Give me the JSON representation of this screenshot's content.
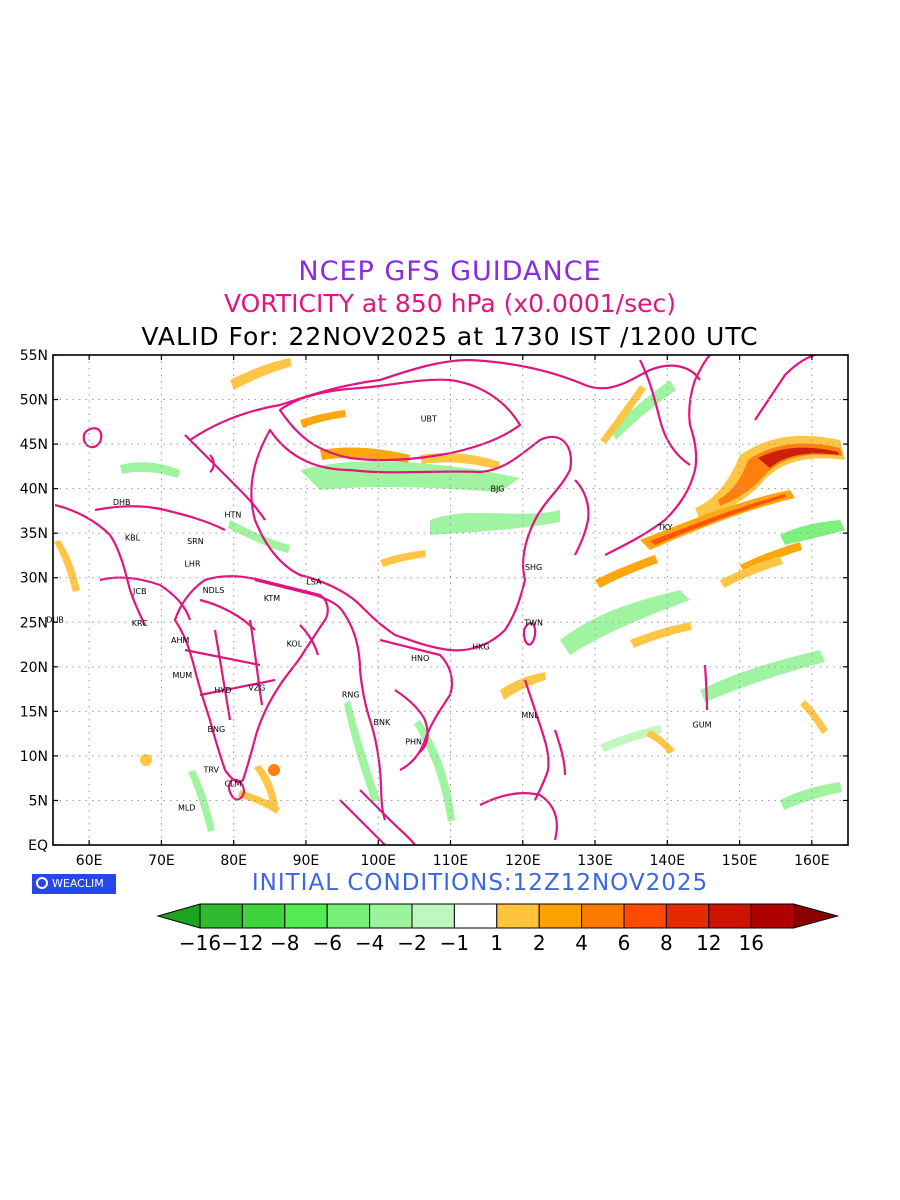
{
  "title": {
    "line1": "NCEP GFS GUIDANCE",
    "line2": "VORTICITY at 850 hPa (x0.0001/sec)",
    "line3": "VALID For: 22NOV2025 at 1730 IST /1200 UTC"
  },
  "initial_conditions": "INITIAL CONDITIONS:12Z12NOV2025",
  "logo_text": "WEACLIM",
  "logo_icon": "copyright-circle-icon",
  "map": {
    "lon_range": [
      55,
      165
    ],
    "lat_range": [
      0,
      55
    ],
    "grid": "dotted",
    "lat_labels": [
      "55N",
      "50N",
      "45N",
      "40N",
      "35N",
      "30N",
      "25N",
      "20N",
      "15N",
      "10N",
      "5N",
      "EQ"
    ],
    "lon_labels": [
      "60E",
      "70E",
      "80E",
      "90E",
      "100E",
      "110E",
      "120E",
      "130E",
      "140E",
      "150E",
      "160E"
    ],
    "boundary_color": "#e0157f",
    "stations": [
      {
        "code": "UBT",
        "lon": 107,
        "lat": 47.9
      },
      {
        "code": "BJG",
        "lon": 116.5,
        "lat": 40
      },
      {
        "code": "DHB",
        "lon": 64.5,
        "lat": 38.5
      },
      {
        "code": "HTN",
        "lon": 79.9,
        "lat": 37.1
      },
      {
        "code": "KBL",
        "lon": 66,
        "lat": 34.5
      },
      {
        "code": "SRN",
        "lon": 74.7,
        "lat": 34.1
      },
      {
        "code": "TKY",
        "lon": 139.7,
        "lat": 35.7
      },
      {
        "code": "LHR",
        "lon": 74.3,
        "lat": 31.6
      },
      {
        "code": "SHG",
        "lon": 121.5,
        "lat": 31.2
      },
      {
        "code": "LSA",
        "lon": 91.1,
        "lat": 29.6
      },
      {
        "code": "JCB",
        "lon": 67,
        "lat": 28.5
      },
      {
        "code": "NDLS",
        "lon": 77.2,
        "lat": 28.6
      },
      {
        "code": "KTM",
        "lon": 85.3,
        "lat": 27.7
      },
      {
        "code": "DUB",
        "lon": 55.3,
        "lat": 25.3
      },
      {
        "code": "KRC",
        "lon": 67,
        "lat": 24.9
      },
      {
        "code": "TWN",
        "lon": 121.5,
        "lat": 25
      },
      {
        "code": "AHM",
        "lon": 72.6,
        "lat": 23
      },
      {
        "code": "KOL",
        "lon": 88.4,
        "lat": 22.6
      },
      {
        "code": "HKG",
        "lon": 114.2,
        "lat": 22.3
      },
      {
        "code": "HNO",
        "lon": 105.8,
        "lat": 21
      },
      {
        "code": "MUM",
        "lon": 72.9,
        "lat": 19.1
      },
      {
        "code": "HYD",
        "lon": 78.5,
        "lat": 17.4
      },
      {
        "code": "VZG",
        "lon": 83.2,
        "lat": 17.7
      },
      {
        "code": "RNG",
        "lon": 96.2,
        "lat": 16.9
      },
      {
        "code": "BNK",
        "lon": 100.5,
        "lat": 13.8
      },
      {
        "code": "MNL",
        "lon": 121,
        "lat": 14.6
      },
      {
        "code": "GUM",
        "lon": 144.8,
        "lat": 13.5
      },
      {
        "code": "BNG",
        "lon": 77.6,
        "lat": 13
      },
      {
        "code": "PHN",
        "lon": 104.9,
        "lat": 11.6
      },
      {
        "code": "TRV",
        "lon": 76.9,
        "lat": 8.5
      },
      {
        "code": "CLM",
        "lon": 79.9,
        "lat": 6.9
      },
      {
        "code": "MLD",
        "lon": 73.5,
        "lat": 4.2
      }
    ]
  },
  "colorbar": {
    "labels": [
      "−16",
      "−12",
      "−8",
      "−6",
      "−4",
      "−2",
      "−1",
      "1",
      "2",
      "4",
      "6",
      "8",
      "12",
      "16"
    ],
    "colors": [
      "#1ea31e",
      "#2fbb2f",
      "#3ed43e",
      "#52ec52",
      "#78f078",
      "#9bf39b",
      "#bff7bf",
      "#ffffff",
      "#ffc23c",
      "#ffa200",
      "#ff7a00",
      "#ff4a00",
      "#e62a00",
      "#cc1400",
      "#b00000",
      "#8c0000"
    ]
  }
}
